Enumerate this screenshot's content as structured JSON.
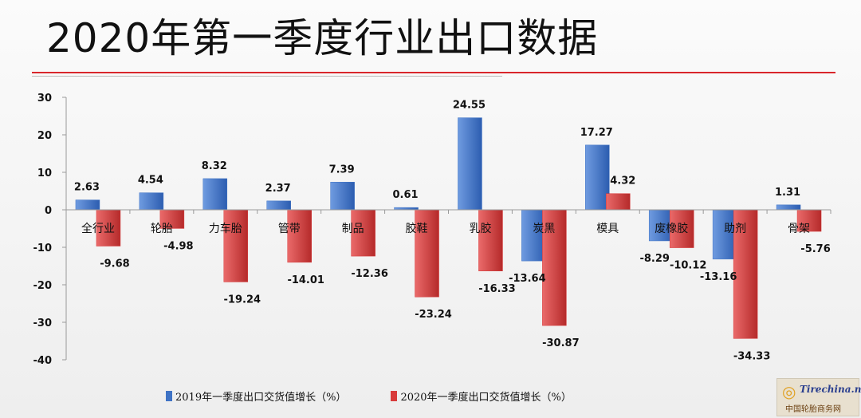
{
  "title": "2020年第一季度行业出口数据",
  "watermark": {
    "brand": "Tirechina.net",
    "caption": "中国轮胎商务网",
    "icon": "tire-logo-icon"
  },
  "colors": {
    "series_2019": "#3f73c5",
    "series_2020": "#d83a3a",
    "accent_rule": "#d9262b"
  },
  "chart_data": {
    "type": "bar",
    "title": "2020年第一季度行业出口数据",
    "categories": [
      "全行业",
      "轮胎",
      "力车胎",
      "管带",
      "制品",
      "胶鞋",
      "乳胶",
      "炭黑",
      "模具",
      "废橡胶",
      "助剂",
      "骨架"
    ],
    "series": [
      {
        "name": "2019年一季度出口交货值增长（%）",
        "values": [
          2.63,
          4.54,
          8.32,
          2.37,
          7.39,
          0.61,
          24.55,
          -13.64,
          17.27,
          -8.29,
          -13.16,
          1.31
        ]
      },
      {
        "name": "2020年一季度出口交货值增长（%）",
        "values": [
          -9.68,
          -4.98,
          -19.24,
          -14.01,
          -12.36,
          -23.24,
          -16.33,
          -30.87,
          4.32,
          -10.12,
          -34.33,
          -5.76
        ]
      }
    ],
    "value_labels": [
      [
        "2.63",
        "4.54",
        "8.32",
        "2.37",
        "7.39",
        "0.61",
        "24.55",
        "-13.64",
        "17.27",
        "-8.29",
        "-13.16",
        "1.31"
      ],
      [
        "-9.68",
        "-4.98",
        "-19.24",
        "-14.01",
        "-12.36",
        "-23.24",
        "-16.33",
        "-30.87",
        "4.32",
        "-10.12",
        "-34.33",
        "-5.76"
      ]
    ],
    "yticks": [
      "30",
      "20",
      "10",
      "0",
      "-10",
      "-20",
      "-30",
      "-40"
    ],
    "ytick_values": [
      30,
      20,
      10,
      0,
      -10,
      -20,
      -30,
      -40
    ],
    "ylim": [
      -40,
      30
    ],
    "xlabel": "",
    "ylabel": "",
    "legend_position": "bottom",
    "grid": false
  }
}
